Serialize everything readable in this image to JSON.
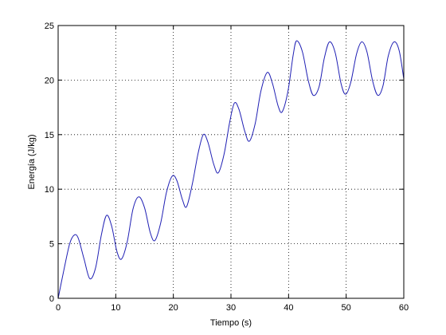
{
  "chart_data": {
    "type": "line",
    "xlabel": "Tiempo (s)",
    "ylabel": "Energía (J/kg)",
    "xlim": [
      0,
      60
    ],
    "ylim": [
      0,
      25
    ],
    "xticks": [
      0,
      10,
      20,
      30,
      40,
      50,
      60
    ],
    "yticks": [
      0,
      5,
      10,
      15,
      20,
      25
    ],
    "xtick_labels": [
      "0",
      "10",
      "20",
      "30",
      "40",
      "50",
      "60"
    ],
    "ytick_labels": [
      "0",
      "5",
      "10",
      "15",
      "20",
      "25"
    ],
    "grid": true,
    "line_color": "#1f1fb4",
    "series": [
      {
        "x": [
          0,
          1,
          2,
          2.8,
          3.5,
          4.5,
          5.5,
          6.5,
          7.5,
          8.4,
          9.3,
          10.2,
          11.0,
          12.0,
          13.0,
          14.0,
          15.0,
          16.0,
          16.8,
          17.8,
          18.8,
          19.8,
          20.6,
          21.6,
          22.3,
          23.3,
          24.3,
          25.2,
          26.0,
          27.0,
          27.8,
          28.8,
          29.8,
          30.6,
          31.4,
          32.4,
          33.2,
          34.2,
          35.2,
          36.3,
          37.2,
          38.2,
          38.9,
          39.9,
          40.8,
          41.4,
          42.4,
          43.4,
          44.3,
          45.3,
          46.2,
          47.1,
          48.1,
          49.1,
          49.9,
          50.8,
          51.8,
          52.7,
          53.6,
          54.6,
          55.5,
          56.4,
          57.3,
          58.3,
          59.2,
          60.0
        ],
        "y": [
          0,
          2.6,
          5.0,
          5.8,
          5.5,
          3.6,
          1.8,
          2.8,
          5.8,
          7.6,
          6.6,
          4.3,
          3.6,
          5.2,
          8.2,
          9.3,
          8.3,
          6.0,
          5.3,
          6.9,
          9.7,
          11.2,
          10.8,
          9.0,
          8.4,
          10.5,
          13.3,
          15.0,
          14.3,
          12.3,
          11.5,
          13.2,
          16.2,
          17.9,
          17.3,
          15.3,
          14.4,
          16.0,
          19.0,
          20.7,
          19.7,
          17.6,
          17.1,
          19.0,
          22.3,
          23.6,
          22.6,
          20.0,
          18.6,
          19.4,
          22.0,
          23.5,
          22.5,
          19.7,
          18.7,
          19.8,
          22.4,
          23.5,
          22.6,
          19.9,
          18.6,
          19.5,
          22.2,
          23.5,
          22.7,
          20.1
        ]
      }
    ]
  }
}
